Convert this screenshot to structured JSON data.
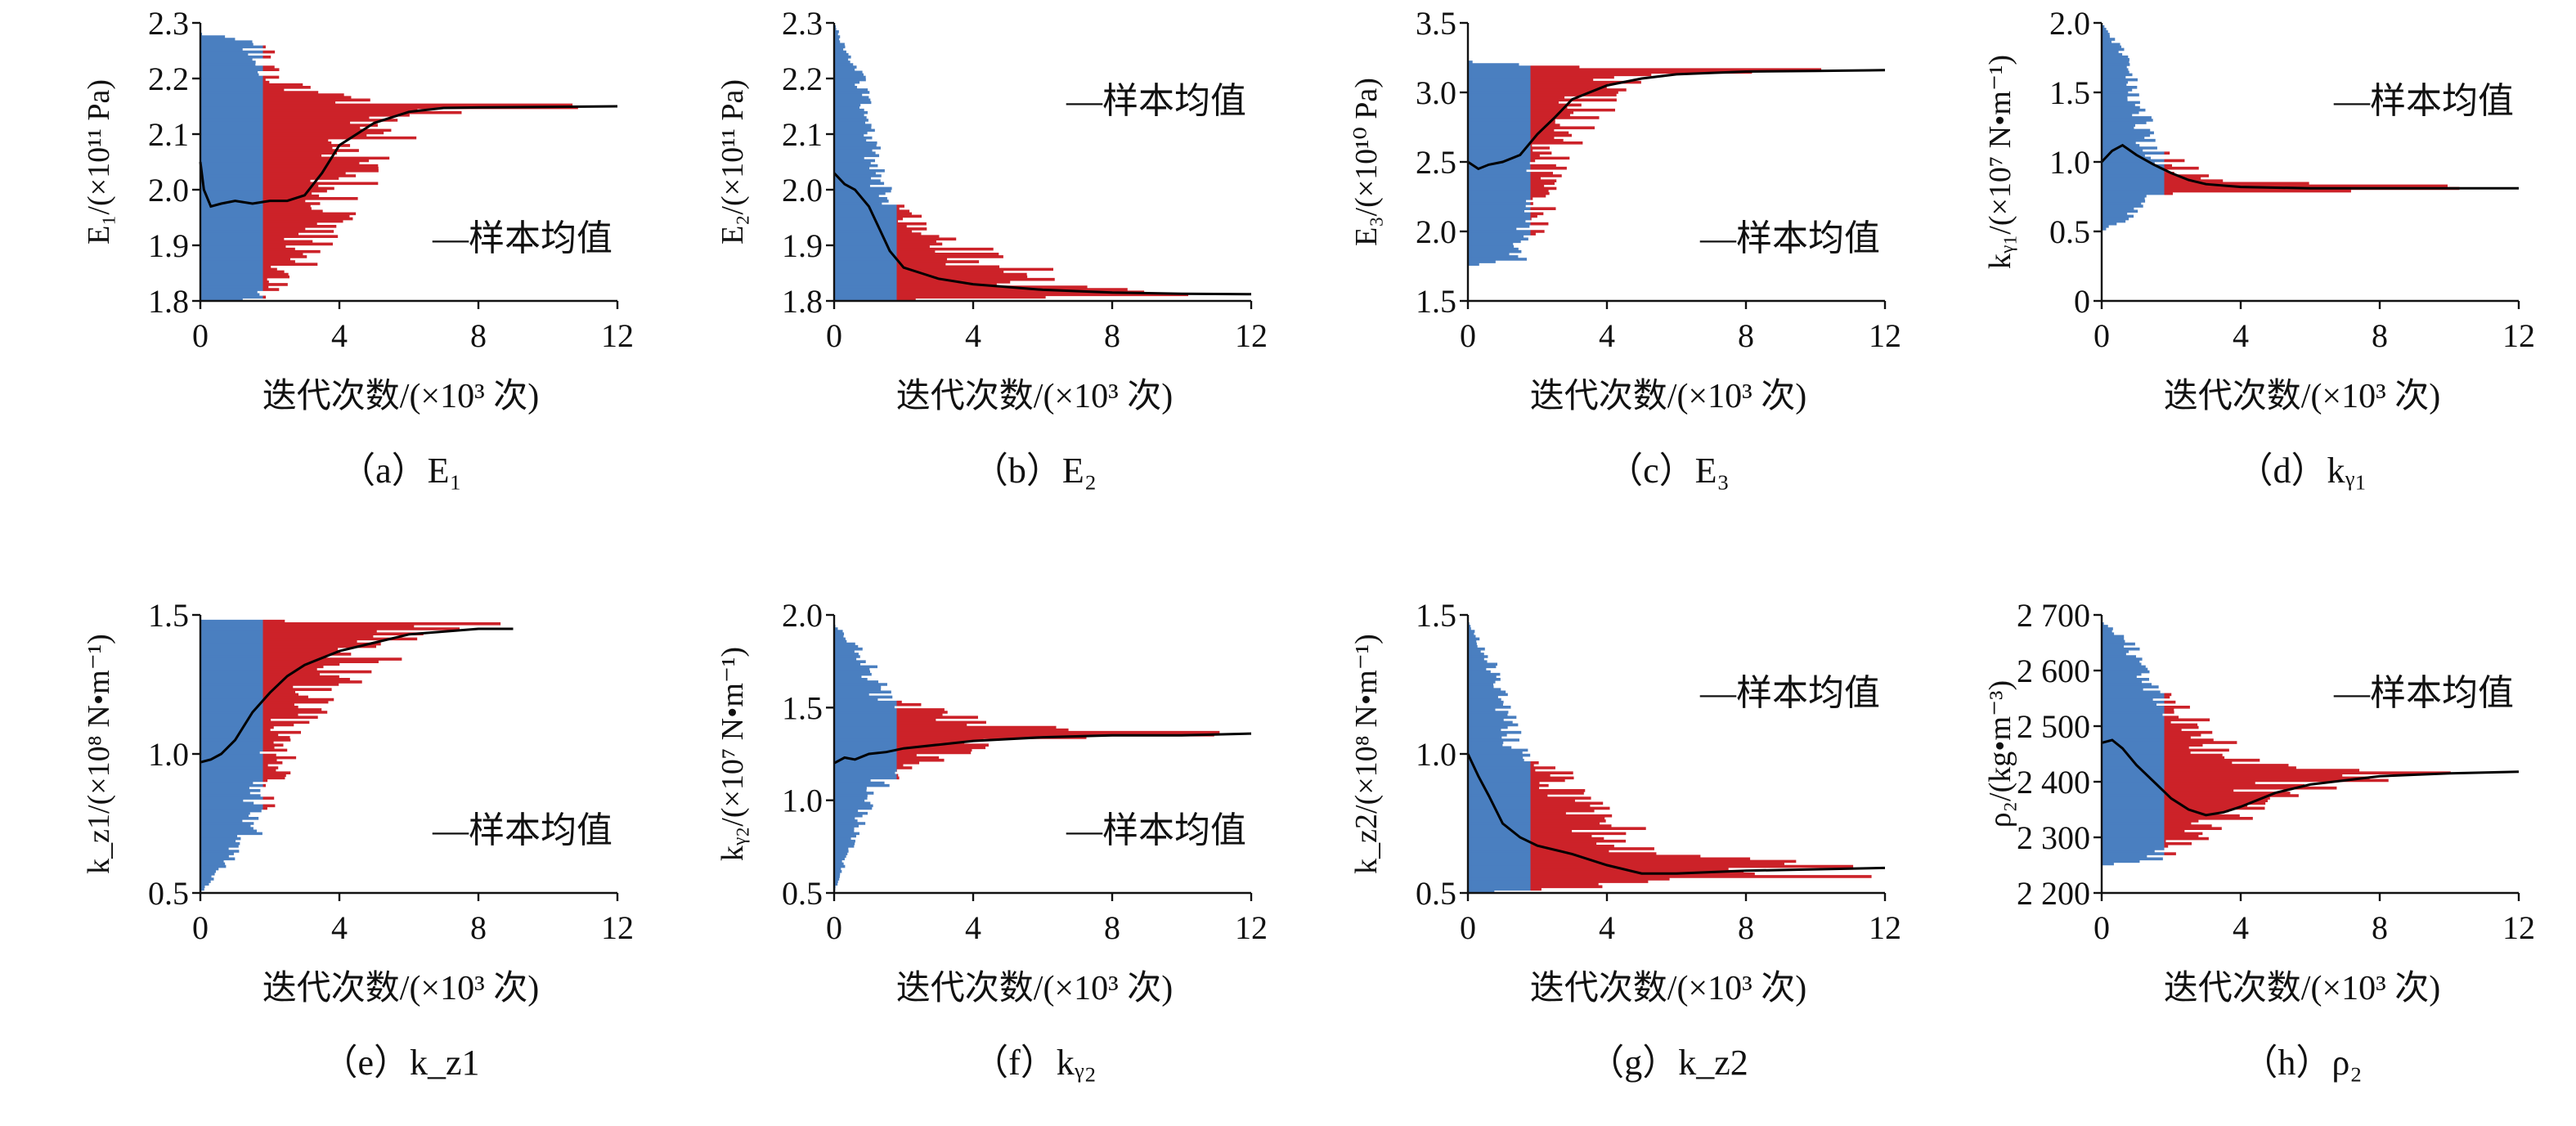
{
  "figure": {
    "colors": {
      "burn_in": "#4a7fc0",
      "sampling": "#cc2229",
      "mean": "#000000"
    },
    "x_axis_label": "迭代次数/(×10³ 次)",
    "legend_label": "—样本均值"
  },
  "chart_data": [
    {
      "id": "a",
      "type": "line",
      "caption": "（a）E₁",
      "ylabel": "E₁/(×10¹¹ Pa)",
      "xlim": [
        0,
        12
      ],
      "xticks": [
        0,
        4,
        8,
        12
      ],
      "xtick_labels": [
        "0",
        "4",
        "8",
        "12"
      ],
      "ylim": [
        1.8,
        2.3
      ],
      "yticks": [
        1.8,
        1.9,
        2.0,
        2.1,
        2.2,
        2.3
      ],
      "ytick_labels": [
        "1.8",
        "1.9",
        "2.0",
        "2.1",
        "2.2",
        "2.3"
      ],
      "burn_in_end": 1.8,
      "legend_position": "lower-right",
      "series": [
        {
          "name": "—样本均值",
          "x": [
            0,
            0.1,
            0.3,
            0.6,
            1.0,
            1.5,
            2.0,
            2.5,
            3.0,
            3.5,
            4.0,
            5.0,
            6.0,
            7.0,
            8.0,
            10.0,
            12.0
          ],
          "y": [
            2.05,
            2.0,
            1.97,
            1.975,
            1.98,
            1.975,
            1.98,
            1.98,
            1.99,
            2.03,
            2.08,
            2.12,
            2.14,
            2.147,
            2.148,
            2.149,
            2.15
          ]
        }
      ],
      "band_top": [
        [
          0,
          2.28
        ],
        [
          1.8,
          2.27
        ],
        [
          3,
          2.2
        ],
        [
          5,
          2.16
        ],
        [
          8,
          2.155
        ],
        [
          12,
          2.152
        ]
      ],
      "band_bottom": [
        [
          0,
          1.8
        ],
        [
          1.8,
          1.8
        ],
        [
          3,
          1.83
        ],
        [
          5,
          1.95
        ],
        [
          6.5,
          2.12
        ],
        [
          8,
          2.145
        ],
        [
          12,
          2.148
        ]
      ]
    },
    {
      "id": "b",
      "type": "line",
      "caption": "（b）E₂",
      "ylabel": "E₂/(×10¹¹ Pa)",
      "xlim": [
        0,
        12
      ],
      "xticks": [
        0,
        4,
        8,
        12
      ],
      "xtick_labels": [
        "0",
        "4",
        "8",
        "12"
      ],
      "ylim": [
        1.8,
        2.3
      ],
      "yticks": [
        1.8,
        1.9,
        2.0,
        2.1,
        2.2,
        2.3
      ],
      "ytick_labels": [
        "1.8",
        "1.9",
        "2.0",
        "2.1",
        "2.2",
        "2.3"
      ],
      "burn_in_end": 1.8,
      "legend_position": "upper-right",
      "series": [
        {
          "name": "—样本均值",
          "x": [
            0,
            0.3,
            0.6,
            1.0,
            1.3,
            1.6,
            2.0,
            2.5,
            3.0,
            4.0,
            5.0,
            6.0,
            8.0,
            10.0,
            12.0
          ],
          "y": [
            2.03,
            2.01,
            2.0,
            1.97,
            1.93,
            1.89,
            1.86,
            1.85,
            1.84,
            1.83,
            1.825,
            1.82,
            1.815,
            1.813,
            1.812
          ]
        }
      ],
      "band_top": [
        [
          0,
          2.3
        ],
        [
          1.0,
          2.2
        ],
        [
          1.8,
          2.0
        ],
        [
          3,
          1.95
        ],
        [
          5,
          1.88
        ],
        [
          8,
          1.83
        ],
        [
          12,
          1.818
        ]
      ],
      "band_bottom": [
        [
          0,
          1.8
        ],
        [
          12,
          1.808
        ]
      ]
    },
    {
      "id": "c",
      "type": "line",
      "caption": "（c）E₃",
      "ylabel": "E₃/(×10¹⁰ Pa)",
      "xlim": [
        0,
        12
      ],
      "xticks": [
        0,
        4,
        8,
        12
      ],
      "xtick_labels": [
        "0",
        "4",
        "8",
        "12"
      ],
      "ylim": [
        1.5,
        3.5
      ],
      "yticks": [
        1.5,
        2.0,
        2.5,
        3.0,
        3.5
      ],
      "ytick_labels": [
        "1.5",
        "2.0",
        "2.5",
        "3.0",
        "3.5"
      ],
      "burn_in_end": 1.8,
      "legend_position": "lower-right",
      "series": [
        {
          "name": "—样本均值",
          "x": [
            0,
            0.3,
            0.6,
            1.0,
            1.5,
            2.0,
            2.5,
            3.0,
            4.0,
            5.0,
            6.0,
            8.0,
            10.0,
            12.0
          ],
          "y": [
            2.5,
            2.45,
            2.48,
            2.5,
            2.55,
            2.7,
            2.82,
            2.95,
            3.05,
            3.1,
            3.13,
            3.15,
            3.155,
            3.16
          ]
        }
      ],
      "band_top": [
        [
          0,
          3.22
        ],
        [
          1.8,
          3.2
        ],
        [
          4,
          3.18
        ],
        [
          8,
          3.17
        ],
        [
          12,
          3.17
        ]
      ],
      "band_bottom": [
        [
          0,
          1.75
        ],
        [
          1.8,
          1.8
        ],
        [
          2.5,
          2.1
        ],
        [
          3.5,
          2.7
        ],
        [
          5,
          3.0
        ],
        [
          7,
          3.12
        ],
        [
          12,
          3.15
        ]
      ]
    },
    {
      "id": "d",
      "type": "line",
      "caption": "（d）kᵧ₁",
      "ylabel": "kᵧ₁/(×10⁷ N•m⁻¹)",
      "xlim": [
        0,
        12
      ],
      "xticks": [
        0,
        4,
        8,
        12
      ],
      "xtick_labels": [
        "0",
        "4",
        "8",
        "12"
      ],
      "ylim": [
        0,
        2.0
      ],
      "yticks": [
        0,
        0.5,
        1.0,
        1.5,
        2.0
      ],
      "ytick_labels": [
        "0",
        "0.5",
        "1.0",
        "1.5",
        "2.0"
      ],
      "burn_in_end": 1.8,
      "legend_position": "upper-right",
      "series": [
        {
          "name": "—样本均值",
          "x": [
            0,
            0.3,
            0.6,
            1.0,
            1.5,
            2.0,
            2.5,
            3.0,
            4.0,
            6.0,
            8.0,
            12.0
          ],
          "y": [
            1.0,
            1.08,
            1.12,
            1.05,
            0.98,
            0.92,
            0.87,
            0.84,
            0.82,
            0.81,
            0.81,
            0.81
          ]
        }
      ],
      "band_top": [
        [
          0,
          2.0
        ],
        [
          0.8,
          1.8
        ],
        [
          1.8,
          1.1
        ],
        [
          3,
          0.95
        ],
        [
          5,
          0.85
        ],
        [
          12,
          0.82
        ]
      ],
      "band_bottom": [
        [
          0,
          0.5
        ],
        [
          1.0,
          0.6
        ],
        [
          1.8,
          0.75
        ],
        [
          3,
          0.78
        ],
        [
          12,
          0.8
        ]
      ]
    },
    {
      "id": "e",
      "type": "line",
      "caption": "（e）k_z1",
      "ylabel": "k_z1/(×10⁸ N•m⁻¹)",
      "xlim": [
        0,
        12
      ],
      "xticks": [
        0,
        4,
        8,
        12
      ],
      "xtick_labels": [
        "0",
        "4",
        "8",
        "12"
      ],
      "ylim": [
        0.5,
        1.5
      ],
      "yticks": [
        0.5,
        1.0,
        1.5
      ],
      "ytick_labels": [
        "0.5",
        "1.0",
        "1.5"
      ],
      "burn_in_end": 1.8,
      "legend_position": "lower-right",
      "series": [
        {
          "name": "—样本均值",
          "x": [
            0,
            0.3,
            0.6,
            1.0,
            1.5,
            2.0,
            2.5,
            3.0,
            4.0,
            5.0,
            6.0,
            7.0,
            8.0,
            9.0
          ],
          "y": [
            0.97,
            0.98,
            1.0,
            1.05,
            1.15,
            1.22,
            1.28,
            1.32,
            1.37,
            1.4,
            1.43,
            1.44,
            1.45,
            1.45
          ]
        }
      ],
      "band_top": [
        [
          0,
          1.48
        ],
        [
          9.2,
          1.47
        ]
      ],
      "band_bottom": [
        [
          0,
          0.5
        ],
        [
          1.8,
          0.7
        ],
        [
          2.5,
          0.9
        ],
        [
          4,
          1.2
        ],
        [
          6,
          1.35
        ],
        [
          8,
          1.42
        ],
        [
          9.2,
          1.44
        ]
      ]
    },
    {
      "id": "f",
      "type": "line",
      "caption": "（f）kᵧ₂",
      "ylabel": "kᵧ₂/(×10⁷ N•m⁻¹)",
      "xlim": [
        0,
        12
      ],
      "xticks": [
        0,
        4,
        8,
        12
      ],
      "xtick_labels": [
        "0",
        "4",
        "8",
        "12"
      ],
      "ylim": [
        0.5,
        2.0
      ],
      "yticks": [
        0.5,
        1.0,
        1.5,
        2.0
      ],
      "ytick_labels": [
        "0.5",
        "1.0",
        "1.5",
        "2.0"
      ],
      "burn_in_end": 1.8,
      "legend_position": "lower-right",
      "series": [
        {
          "name": "—样本均值",
          "x": [
            0,
            0.3,
            0.6,
            1.0,
            1.5,
            2.0,
            3.0,
            4.0,
            6.0,
            8.0,
            10.0,
            12.0
          ],
          "y": [
            1.2,
            1.23,
            1.22,
            1.25,
            1.26,
            1.28,
            1.3,
            1.32,
            1.34,
            1.35,
            1.35,
            1.36
          ]
        }
      ],
      "band_top": [
        [
          0,
          1.95
        ],
        [
          1.0,
          1.8
        ],
        [
          1.8,
          1.55
        ],
        [
          3,
          1.5
        ],
        [
          5,
          1.42
        ],
        [
          8,
          1.38
        ],
        [
          12,
          1.37
        ]
      ],
      "band_bottom": [
        [
          0,
          0.5
        ],
        [
          1.0,
          0.9
        ],
        [
          1.8,
          1.1
        ],
        [
          3,
          1.2
        ],
        [
          5,
          1.3
        ],
        [
          8,
          1.34
        ],
        [
          12,
          1.35
        ]
      ]
    },
    {
      "id": "g",
      "type": "line",
      "caption": "（g）k_z2",
      "ylabel": "k_z2/(×10⁸ N•m⁻¹)",
      "xlim": [
        0,
        12
      ],
      "xticks": [
        0,
        4,
        8,
        12
      ],
      "xtick_labels": [
        "0",
        "4",
        "8",
        "12"
      ],
      "ylim": [
        0.5,
        1.5
      ],
      "yticks": [
        0.5,
        1.0,
        1.5
      ],
      "ytick_labels": [
        "0.5",
        "1.0",
        "1.5"
      ],
      "burn_in_end": 1.8,
      "legend_position": "upper-right",
      "series": [
        {
          "name": "—样本均值",
          "x": [
            0,
            0.3,
            0.6,
            1.0,
            1.5,
            2.0,
            3.0,
            4.0,
            5.0,
            6.0,
            8.0,
            10.0,
            12.0
          ],
          "y": [
            1.0,
            0.92,
            0.85,
            0.75,
            0.7,
            0.67,
            0.64,
            0.6,
            0.57,
            0.57,
            0.58,
            0.585,
            0.59
          ]
        }
      ],
      "band_top": [
        [
          0,
          1.48
        ],
        [
          1.0,
          1.3
        ],
        [
          1.8,
          1.0
        ],
        [
          3,
          0.95
        ],
        [
          4.5,
          0.8
        ],
        [
          6,
          0.65
        ],
        [
          12,
          0.6
        ]
      ],
      "band_bottom": [
        [
          0,
          0.5
        ],
        [
          12,
          0.56
        ]
      ]
    },
    {
      "id": "h",
      "type": "line",
      "caption": "（h）ρ₂",
      "ylabel": "ρ₂/(kg•m⁻³)",
      "xlim": [
        0,
        12
      ],
      "xticks": [
        0,
        4,
        8,
        12
      ],
      "xtick_labels": [
        "0",
        "4",
        "8",
        "12"
      ],
      "ylim": [
        2200,
        2700
      ],
      "yticks": [
        2200,
        2300,
        2400,
        2500,
        2600,
        2700
      ],
      "ytick_labels": [
        "2 200",
        "2 300",
        "2 400",
        "2 500",
        "2 600",
        "2 700"
      ],
      "burn_in_end": 1.8,
      "legend_position": "upper-right",
      "series": [
        {
          "name": "—样本均值",
          "x": [
            0,
            0.3,
            0.6,
            1.0,
            1.5,
            2.0,
            2.5,
            3.0,
            3.5,
            4.0,
            5.0,
            6.0,
            8.0,
            10.0,
            12.0
          ],
          "y": [
            2470,
            2475,
            2460,
            2430,
            2400,
            2370,
            2350,
            2340,
            2345,
            2355,
            2380,
            2395,
            2410,
            2415,
            2418
          ]
        }
      ],
      "band_top": [
        [
          0,
          2690
        ],
        [
          1.0,
          2650
        ],
        [
          1.8,
          2580
        ],
        [
          3,
          2520
        ],
        [
          4.5,
          2440
        ],
        [
          6,
          2425
        ],
        [
          12,
          2422
        ]
      ],
      "band_bottom": [
        [
          0,
          2250
        ],
        [
          1.8,
          2260
        ],
        [
          3,
          2290
        ],
        [
          4.5,
          2330
        ],
        [
          6,
          2380
        ],
        [
          8,
          2400
        ],
        [
          12,
          2410
        ]
      ]
    }
  ]
}
